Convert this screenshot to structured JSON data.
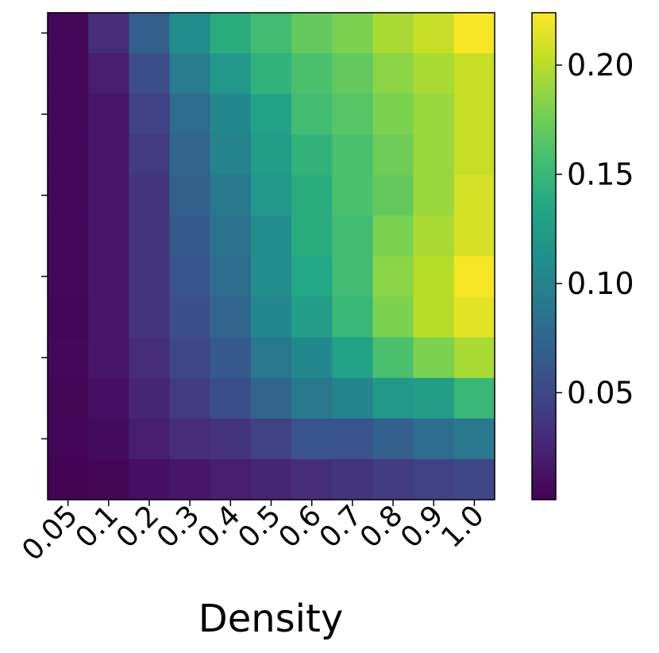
{
  "chart_data": {
    "type": "heatmap",
    "xlabel": "Density",
    "ylabel": "",
    "x_categories": [
      "0.05",
      "0.1",
      "0.2",
      "0.3",
      "0.4",
      "0.5",
      "0.6",
      "0.7",
      "0.8",
      "0.9",
      "1.0"
    ],
    "y_tick_labels": [],
    "colormap": "viridis",
    "colorbar": {
      "range": [
        0.001,
        0.224
      ],
      "ticks": [
        0.05,
        0.1,
        0.15,
        0.2
      ],
      "tick_labels": [
        "0.05",
        "0.10",
        "0.15",
        "0.20"
      ]
    },
    "values": [
      [
        0.005,
        0.03,
        0.07,
        0.11,
        0.14,
        0.155,
        0.17,
        0.18,
        0.195,
        0.205,
        0.222
      ],
      [
        0.005,
        0.02,
        0.055,
        0.095,
        0.12,
        0.145,
        0.16,
        0.17,
        0.185,
        0.195,
        0.205
      ],
      [
        0.005,
        0.015,
        0.045,
        0.08,
        0.105,
        0.13,
        0.155,
        0.165,
        0.18,
        0.19,
        0.205
      ],
      [
        0.005,
        0.015,
        0.04,
        0.075,
        0.1,
        0.125,
        0.145,
        0.16,
        0.175,
        0.19,
        0.205
      ],
      [
        0.005,
        0.015,
        0.035,
        0.07,
        0.09,
        0.12,
        0.14,
        0.16,
        0.17,
        0.19,
        0.21
      ],
      [
        0.005,
        0.015,
        0.035,
        0.065,
        0.085,
        0.11,
        0.14,
        0.155,
        0.18,
        0.195,
        0.21
      ],
      [
        0.005,
        0.015,
        0.035,
        0.06,
        0.08,
        0.11,
        0.135,
        0.155,
        0.185,
        0.2,
        0.222
      ],
      [
        0.003,
        0.015,
        0.035,
        0.055,
        0.075,
        0.105,
        0.125,
        0.15,
        0.18,
        0.2,
        0.215
      ],
      [
        0.005,
        0.015,
        0.03,
        0.05,
        0.065,
        0.09,
        0.105,
        0.13,
        0.16,
        0.18,
        0.195
      ],
      [
        0.004,
        0.01,
        0.025,
        0.04,
        0.055,
        0.075,
        0.09,
        0.1,
        0.12,
        0.125,
        0.15
      ],
      [
        0.003,
        0.008,
        0.02,
        0.03,
        0.035,
        0.045,
        0.06,
        0.06,
        0.07,
        0.08,
        0.09
      ],
      [
        0.002,
        0.004,
        0.01,
        0.015,
        0.02,
        0.025,
        0.03,
        0.035,
        0.04,
        0.045,
        0.05
      ]
    ]
  }
}
